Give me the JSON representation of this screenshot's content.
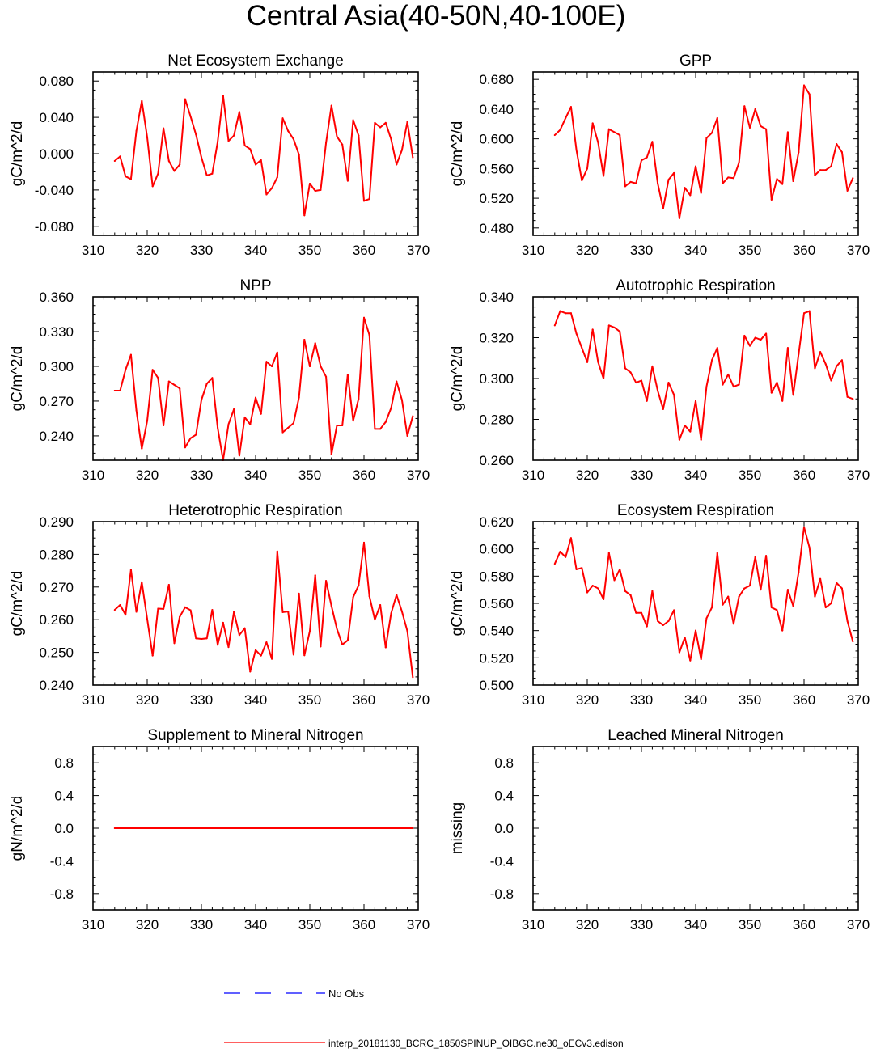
{
  "page_title": "Central Asia(40-50N,40-100E)",
  "colors": {
    "model": "#ff0000",
    "obs": "#0000ff",
    "axis": "#000000"
  },
  "legend": {
    "obs_label": "No Obs",
    "model_label": "interp_20181130_BCRC_1850SPINUP_OIBGC.ne30_oECv3.edison"
  },
  "chart_data": [
    {
      "id": "nee",
      "type": "line",
      "title": "Net Ecosystem Exchange",
      "ylabel": "gC/m^2/d",
      "xlim": [
        310,
        370
      ],
      "xticks": [
        310,
        320,
        330,
        340,
        350,
        360,
        370
      ],
      "ylim": [
        -0.09,
        0.09
      ],
      "yticks": [
        -0.08,
        -0.04,
        0.0,
        0.04,
        0.08
      ],
      "yticklabels": [
        "-0.080",
        "-0.040",
        "0.000",
        "0.040",
        "0.080"
      ],
      "x": [
        314,
        315,
        316,
        317,
        318,
        319,
        320,
        321,
        322,
        323,
        324,
        325,
        326,
        327,
        328,
        329,
        330,
        331,
        332,
        333,
        334,
        335,
        336,
        337,
        338,
        339,
        340,
        341,
        342,
        343,
        344,
        345,
        346,
        347,
        348,
        349,
        350,
        351,
        352,
        353,
        354,
        355,
        356,
        357,
        358,
        359,
        360,
        361,
        362,
        363,
        364,
        365,
        366,
        367,
        368,
        369
      ],
      "series": [
        {
          "name": "model",
          "values": [
            -0.008,
            -0.003,
            -0.025,
            -0.028,
            0.025,
            0.058,
            0.018,
            -0.036,
            -0.022,
            0.028,
            -0.008,
            -0.019,
            -0.012,
            0.06,
            0.041,
            0.021,
            -0.004,
            -0.024,
            -0.022,
            0.013,
            0.064,
            0.014,
            0.02,
            0.046,
            0.009,
            0.005,
            -0.012,
            -0.007,
            -0.045,
            -0.038,
            -0.026,
            0.039,
            0.025,
            0.016,
            -0.001,
            -0.068,
            -0.033,
            -0.041,
            -0.04,
            0.012,
            0.053,
            0.019,
            0.01,
            -0.03,
            0.037,
            0.02,
            -0.052,
            -0.05,
            0.034,
            0.029,
            0.034,
            0.016,
            -0.012,
            0.004,
            0.035,
            -0.004
          ]
        }
      ]
    },
    {
      "id": "gpp",
      "type": "line",
      "title": "GPP",
      "ylabel": "gC/m^2/d",
      "xlim": [
        310,
        370
      ],
      "xticks": [
        310,
        320,
        330,
        340,
        350,
        360,
        370
      ],
      "ylim": [
        0.47,
        0.69
      ],
      "yticks": [
        0.48,
        0.52,
        0.56,
        0.6,
        0.64,
        0.68
      ],
      "yticklabels": [
        "0.480",
        "0.520",
        "0.560",
        "0.600",
        "0.640",
        "0.680"
      ],
      "x": [
        314,
        315,
        316,
        317,
        318,
        319,
        320,
        321,
        322,
        323,
        324,
        325,
        326,
        327,
        328,
        329,
        330,
        331,
        332,
        333,
        334,
        335,
        336,
        337,
        338,
        339,
        340,
        341,
        342,
        343,
        344,
        345,
        346,
        347,
        348,
        349,
        350,
        351,
        352,
        353,
        354,
        355,
        356,
        357,
        358,
        359,
        360,
        361,
        362,
        363,
        364,
        365,
        366,
        367,
        368,
        369
      ],
      "series": [
        {
          "name": "model",
          "values": [
            0.605,
            0.612,
            0.628,
            0.643,
            0.585,
            0.544,
            0.56,
            0.621,
            0.595,
            0.55,
            0.613,
            0.609,
            0.605,
            0.536,
            0.542,
            0.54,
            0.571,
            0.575,
            0.596,
            0.54,
            0.506,
            0.545,
            0.554,
            0.493,
            0.534,
            0.524,
            0.563,
            0.527,
            0.601,
            0.608,
            0.628,
            0.54,
            0.548,
            0.547,
            0.568,
            0.644,
            0.615,
            0.64,
            0.617,
            0.613,
            0.518,
            0.546,
            0.539,
            0.609,
            0.543,
            0.582,
            0.672,
            0.66,
            0.551,
            0.558,
            0.558,
            0.563,
            0.593,
            0.582,
            0.53,
            0.547
          ]
        }
      ]
    },
    {
      "id": "npp",
      "type": "line",
      "title": "NPP",
      "ylabel": "gC/m^2/d",
      "xlim": [
        310,
        370
      ],
      "xticks": [
        310,
        320,
        330,
        340,
        350,
        360,
        370
      ],
      "ylim": [
        0.219,
        0.36
      ],
      "yticks": [
        0.24,
        0.27,
        0.3,
        0.33,
        0.36
      ],
      "yticklabels": [
        "0.240",
        "0.270",
        "0.300",
        "0.330",
        "0.360"
      ],
      "x": [
        314,
        315,
        316,
        317,
        318,
        319,
        320,
        321,
        322,
        323,
        324,
        325,
        326,
        327,
        328,
        329,
        330,
        331,
        332,
        333,
        334,
        335,
        336,
        337,
        338,
        339,
        340,
        341,
        342,
        343,
        344,
        345,
        346,
        347,
        348,
        349,
        350,
        351,
        352,
        353,
        354,
        355,
        356,
        357,
        358,
        359,
        360,
        361,
        362,
        363,
        364,
        365,
        366,
        367,
        368,
        369
      ],
      "series": [
        {
          "name": "model",
          "values": [
            0.279,
            0.279,
            0.297,
            0.31,
            0.262,
            0.229,
            0.253,
            0.297,
            0.29,
            0.249,
            0.287,
            0.284,
            0.281,
            0.23,
            0.238,
            0.241,
            0.271,
            0.285,
            0.29,
            0.247,
            0.219,
            0.25,
            0.263,
            0.223,
            0.256,
            0.25,
            0.273,
            0.259,
            0.304,
            0.3,
            0.312,
            0.243,
            0.247,
            0.251,
            0.273,
            0.323,
            0.3,
            0.32,
            0.3,
            0.291,
            0.224,
            0.249,
            0.249,
            0.293,
            0.253,
            0.272,
            0.342,
            0.327,
            0.246,
            0.246,
            0.252,
            0.264,
            0.287,
            0.271,
            0.24,
            0.257
          ]
        }
      ]
    },
    {
      "id": "ar",
      "type": "line",
      "title": "Autotrophic Respiration",
      "ylabel": "gC/m^2/d",
      "xlim": [
        310,
        370
      ],
      "xticks": [
        310,
        320,
        330,
        340,
        350,
        360,
        370
      ],
      "ylim": [
        0.26,
        0.34
      ],
      "yticks": [
        0.26,
        0.28,
        0.3,
        0.32,
        0.34
      ],
      "yticklabels": [
        "0.260",
        "0.280",
        "0.300",
        "0.320",
        "0.340"
      ],
      "x": [
        314,
        315,
        316,
        317,
        318,
        319,
        320,
        321,
        322,
        323,
        324,
        325,
        326,
        327,
        328,
        329,
        330,
        331,
        332,
        333,
        334,
        335,
        336,
        337,
        338,
        339,
        340,
        341,
        342,
        343,
        344,
        345,
        346,
        347,
        348,
        349,
        350,
        351,
        352,
        353,
        354,
        355,
        356,
        357,
        358,
        359,
        360,
        361,
        362,
        363,
        364,
        365,
        366,
        367,
        368,
        369
      ],
      "series": [
        {
          "name": "model",
          "values": [
            0.326,
            0.333,
            0.332,
            0.332,
            0.322,
            0.315,
            0.308,
            0.324,
            0.308,
            0.3,
            0.326,
            0.325,
            0.323,
            0.305,
            0.303,
            0.298,
            0.299,
            0.289,
            0.306,
            0.294,
            0.285,
            0.298,
            0.292,
            0.27,
            0.277,
            0.274,
            0.289,
            0.27,
            0.296,
            0.309,
            0.315,
            0.297,
            0.302,
            0.296,
            0.297,
            0.321,
            0.316,
            0.32,
            0.319,
            0.322,
            0.293,
            0.298,
            0.289,
            0.315,
            0.292,
            0.312,
            0.332,
            0.333,
            0.305,
            0.313,
            0.307,
            0.299,
            0.306,
            0.309,
            0.291,
            0.29
          ]
        }
      ]
    },
    {
      "id": "hr",
      "type": "line",
      "title": "Heterotrophic Respiration",
      "ylabel": "gC/m^2/d",
      "xlim": [
        310,
        370
      ],
      "xticks": [
        310,
        320,
        330,
        340,
        350,
        360,
        370
      ],
      "ylim": [
        0.24,
        0.29
      ],
      "yticks": [
        0.24,
        0.25,
        0.26,
        0.27,
        0.28,
        0.29
      ],
      "yticklabels": [
        "0.240",
        "0.250",
        "0.260",
        "0.270",
        "0.280",
        "0.290"
      ],
      "x": [
        314,
        315,
        316,
        317,
        318,
        319,
        320,
        321,
        322,
        323,
        324,
        325,
        326,
        327,
        328,
        329,
        330,
        331,
        332,
        333,
        334,
        335,
        336,
        337,
        338,
        339,
        340,
        341,
        342,
        343,
        344,
        345,
        346,
        347,
        348,
        349,
        350,
        351,
        352,
        353,
        354,
        355,
        356,
        357,
        358,
        359,
        360,
        361,
        362,
        363,
        364,
        365,
        366,
        367,
        368,
        369
      ],
      "series": [
        {
          "name": "model",
          "values": [
            0.263,
            0.2645,
            0.2615,
            0.2753,
            0.2624,
            0.2715,
            0.2602,
            0.249,
            0.2634,
            0.2633,
            0.2707,
            0.2528,
            0.2609,
            0.2638,
            0.2629,
            0.2543,
            0.2541,
            0.2543,
            0.263,
            0.2523,
            0.2591,
            0.2516,
            0.2624,
            0.2553,
            0.2574,
            0.2441,
            0.2507,
            0.249,
            0.2531,
            0.248,
            0.2809,
            0.2623,
            0.2625,
            0.2493,
            0.268,
            0.2491,
            0.2565,
            0.2736,
            0.2518,
            0.2719,
            0.2642,
            0.2572,
            0.2524,
            0.2537,
            0.2669,
            0.2705,
            0.2836,
            0.2672,
            0.26,
            0.2645,
            0.2515,
            0.2619,
            0.2676,
            0.2625,
            0.2565,
            0.2424
          ]
        }
      ]
    },
    {
      "id": "er",
      "type": "line",
      "title": "Ecosystem Respiration",
      "ylabel": "gC/m^2/d",
      "xlim": [
        310,
        370
      ],
      "xticks": [
        310,
        320,
        330,
        340,
        350,
        360,
        370
      ],
      "ylim": [
        0.5,
        0.62
      ],
      "yticks": [
        0.5,
        0.52,
        0.54,
        0.56,
        0.58,
        0.6,
        0.62
      ],
      "yticklabels": [
        "0.500",
        "0.520",
        "0.540",
        "0.560",
        "0.580",
        "0.600",
        "0.620"
      ],
      "x": [
        314,
        315,
        316,
        317,
        318,
        319,
        320,
        321,
        322,
        323,
        324,
        325,
        326,
        327,
        328,
        329,
        330,
        331,
        332,
        333,
        334,
        335,
        336,
        337,
        338,
        339,
        340,
        341,
        342,
        343,
        344,
        345,
        346,
        347,
        348,
        349,
        350,
        351,
        352,
        353,
        354,
        355,
        356,
        357,
        358,
        359,
        360,
        361,
        362,
        363,
        364,
        365,
        366,
        367,
        368,
        369
      ],
      "series": [
        {
          "name": "model",
          "values": [
            0.589,
            0.598,
            0.594,
            0.608,
            0.585,
            0.586,
            0.568,
            0.573,
            0.571,
            0.563,
            0.597,
            0.577,
            0.585,
            0.569,
            0.566,
            0.553,
            0.553,
            0.543,
            0.569,
            0.547,
            0.544,
            0.547,
            0.555,
            0.524,
            0.535,
            0.518,
            0.54,
            0.519,
            0.549,
            0.557,
            0.597,
            0.559,
            0.565,
            0.545,
            0.565,
            0.571,
            0.573,
            0.594,
            0.57,
            0.595,
            0.557,
            0.555,
            0.54,
            0.57,
            0.558,
            0.583,
            0.616,
            0.601,
            0.565,
            0.578,
            0.557,
            0.56,
            0.575,
            0.571,
            0.547,
            0.532
          ]
        }
      ]
    },
    {
      "id": "supn",
      "type": "line",
      "title": "Supplement to Mineral Nitrogen",
      "ylabel": "gN/m^2/d",
      "xlim": [
        310,
        370
      ],
      "xticks": [
        310,
        320,
        330,
        340,
        350,
        360,
        370
      ],
      "ylim": [
        -1.0,
        1.0
      ],
      "yticks": [
        -0.8,
        -0.4,
        0.0,
        0.4,
        0.8
      ],
      "yticklabels": [
        "-0.8",
        "-0.4",
        "0.0",
        "0.4",
        "0.8"
      ],
      "x": [
        314,
        369
      ],
      "series": [
        {
          "name": "model",
          "values": [
            0.0,
            0.0
          ]
        }
      ]
    },
    {
      "id": "leachn",
      "type": "line",
      "title": "Leached Mineral Nitrogen",
      "ylabel": "missing",
      "xlim": [
        310,
        370
      ],
      "xticks": [
        310,
        320,
        330,
        340,
        350,
        360,
        370
      ],
      "ylim": [
        -1.0,
        1.0
      ],
      "yticks": [
        -0.8,
        -0.4,
        0.0,
        0.4,
        0.8
      ],
      "yticklabels": [
        "-0.8",
        "-0.4",
        "0.0",
        "0.4",
        "0.8"
      ],
      "x": [],
      "series": []
    }
  ]
}
